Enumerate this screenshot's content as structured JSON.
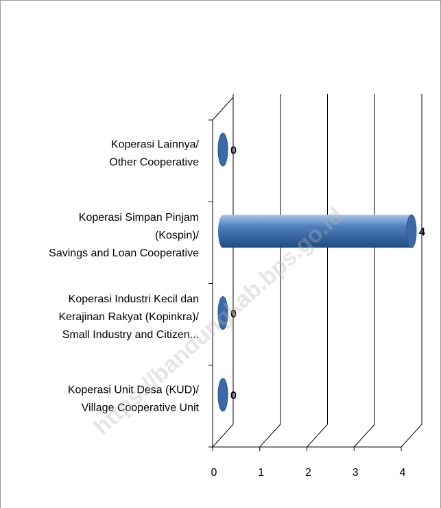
{
  "chart_data": {
    "type": "bar",
    "orientation": "horizontal",
    "style": "3d-cylinder",
    "categories": [
      "Koperasi Lainnya/\nOther Cooperative",
      "Koperasi Simpan Pinjam\n(Kospin)/\nSavings and Loan Cooperative",
      "Koperasi Industri Kecil dan\nKerajinan Rakyat (Kopinkra)/\nSmall Industry and Citizen...",
      "Koperasi Unit Desa (KUD)/\nVillage Cooperative Unit"
    ],
    "values": [
      0,
      4,
      0,
      0
    ],
    "color": "#4f81bd",
    "xlim": [
      0,
      4
    ],
    "xticks": [
      0,
      1,
      2,
      3,
      4
    ],
    "grid": true,
    "watermark": "https://bandungkab.bps.go.id"
  }
}
